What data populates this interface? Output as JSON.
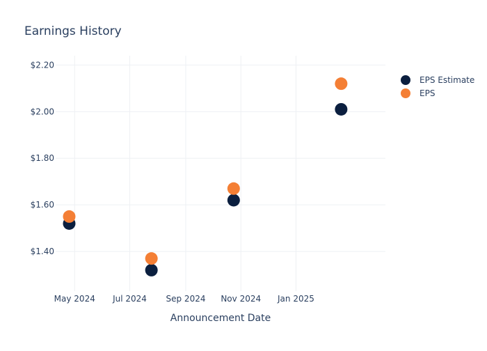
{
  "chart_data": {
    "type": "scatter",
    "title": "Earnings History",
    "xlabel": "Announcement Date",
    "ylabel": "",
    "x_axis": {
      "type": "date",
      "range": [
        "2024-04-10",
        "2025-04-10"
      ],
      "ticks": [
        {
          "date": "2024-05-01",
          "label": "May 2024"
        },
        {
          "date": "2024-07-01",
          "label": "Jul 2024"
        },
        {
          "date": "2024-09-01",
          "label": "Sep 2024"
        },
        {
          "date": "2024-11-01",
          "label": "Nov 2024"
        },
        {
          "date": "2025-01-01",
          "label": "Jan 2025"
        }
      ]
    },
    "y_axis": {
      "range": [
        1.23,
        2.24
      ],
      "ticks": [
        {
          "value": 1.4,
          "label": "$1.40"
        },
        {
          "value": 1.6,
          "label": "$1.60"
        },
        {
          "value": 1.8,
          "label": "$1.80"
        },
        {
          "value": 2.0,
          "label": "$2.00"
        },
        {
          "value": 2.2,
          "label": "$2.20"
        }
      ]
    },
    "grid": true,
    "legend_position": "top-right",
    "series": [
      {
        "name": "EPS Estimate",
        "color": "#0b1f3f",
        "points": [
          {
            "x": "2024-04-25",
            "y": 1.52
          },
          {
            "x": "2024-07-25",
            "y": 1.32
          },
          {
            "x": "2024-10-24",
            "y": 1.62
          },
          {
            "x": "2025-02-20",
            "y": 2.01
          }
        ]
      },
      {
        "name": "EPS",
        "color": "#f47f35",
        "points": [
          {
            "x": "2024-04-25",
            "y": 1.55
          },
          {
            "x": "2024-07-25",
            "y": 1.37
          },
          {
            "x": "2024-10-24",
            "y": 1.67
          },
          {
            "x": "2025-02-20",
            "y": 2.12
          }
        ]
      }
    ]
  }
}
